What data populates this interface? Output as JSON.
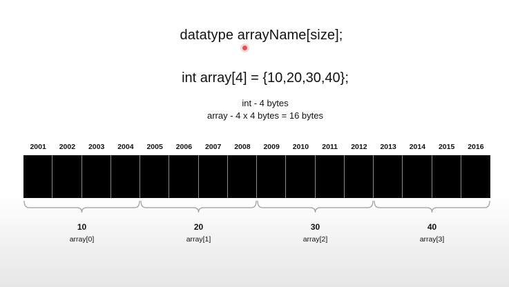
{
  "syntax_line": "datatype arrayName[size];",
  "declaration_line": "int array[4] = {10,20,30,40};",
  "notes": {
    "int_size": "int - 4 bytes",
    "array_size": "array - 4 x 4 bytes = 16 bytes"
  },
  "addresses": [
    "2001",
    "2002",
    "2003",
    "2004",
    "2005",
    "2006",
    "2007",
    "2008",
    "2009",
    "2010",
    "2011",
    "2012",
    "2013",
    "2014",
    "2015",
    "2016"
  ],
  "groups": [
    {
      "value": "10",
      "label": "array[0]"
    },
    {
      "value": "20",
      "label": "array[1]"
    },
    {
      "value": "30",
      "label": "array[2]"
    },
    {
      "value": "40",
      "label": "array[3]"
    }
  ],
  "colors": {
    "cell_fill": "#000000",
    "cell_divider": "#8a8a8a",
    "brace_stroke": "#9a9a9a",
    "cursor_dot": "#e05353"
  }
}
